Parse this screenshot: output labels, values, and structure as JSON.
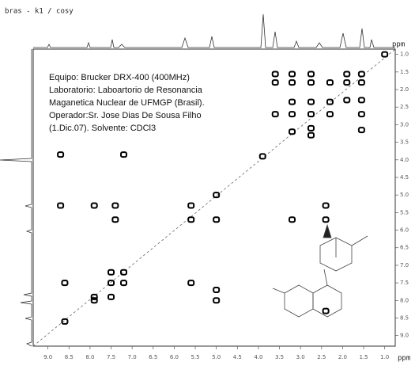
{
  "chart_data": {
    "type": "scatter",
    "title": "bras - k1 / cosy",
    "annotations": [
      "Equipo: Brucker DRX-400 (400MHz)",
      "Laboratorio: Laboartorio de Resonancia",
      "Maganetica Nuclear de UFMGP (Brasil).",
      "Operador:Sr. Jose Dias De Sousa Filho",
      "(1.Dic.07). Solvente: CDCl3"
    ],
    "xlabel": "ppm",
    "ylabel": "ppm",
    "x": [
      3.6,
      3.2,
      2.75,
      1.9,
      1.55,
      3.6,
      3.2,
      2.75,
      2.3,
      1.9,
      1.55,
      3.2,
      2.75,
      2.3,
      1.9,
      1.55,
      3.6,
      3.2,
      2.75,
      2.3,
      1.55,
      3.2,
      2.75,
      1.55,
      2.75,
      3.9,
      7.2,
      8.7,
      5.6,
      5.0,
      7.9,
      7.4,
      8.7,
      2.4,
      5.6,
      5.0,
      7.4,
      3.2,
      2.4,
      7.5,
      7.2,
      7.5,
      8.6,
      7.9,
      7.5,
      8.6,
      7.2,
      5.6,
      5.0,
      5.0,
      7.9,
      2.4,
      1.0
    ],
    "values": [
      1.56,
      1.56,
      1.56,
      1.56,
      1.56,
      1.8,
      1.8,
      1.8,
      1.8,
      1.8,
      1.8,
      2.35,
      2.35,
      2.35,
      2.3,
      2.3,
      2.7,
      2.7,
      2.7,
      2.7,
      2.7,
      3.2,
      3.1,
      3.15,
      3.3,
      3.9,
      3.85,
      3.85,
      5.3,
      5.0,
      5.3,
      5.3,
      5.3,
      5.3,
      5.7,
      5.7,
      5.7,
      5.7,
      5.7,
      7.2,
      7.2,
      7.5,
      7.5,
      7.9,
      7.9,
      8.6,
      7.5,
      7.5,
      7.7,
      8.0,
      8.0,
      8.3,
      1.0
    ],
    "color": "#000000",
    "xlim": [
      9.35,
      0.75
    ],
    "ylim": [
      0.85,
      9.3
    ],
    "xticks": [
      {
        "value": 9,
        "label": "9.0"
      },
      {
        "value": 8.5,
        "label": "8.5"
      },
      {
        "value": 8,
        "label": "8.0"
      },
      {
        "value": 7.5,
        "label": "7.5"
      },
      {
        "value": 7,
        "label": "7.0"
      },
      {
        "value": 6.5,
        "label": "6.5"
      },
      {
        "value": 6,
        "label": "6.0"
      },
      {
        "value": 5.5,
        "label": "5.5"
      },
      {
        "value": 5,
        "label": "5.0"
      },
      {
        "value": 4.5,
        "label": "4.5"
      },
      {
        "value": 4,
        "label": "4.0"
      },
      {
        "value": 3.5,
        "label": "3.5"
      },
      {
        "value": 3,
        "label": "3.0"
      },
      {
        "value": 2.5,
        "label": "2.5"
      },
      {
        "value": 2,
        "label": "2.0"
      },
      {
        "value": 1.5,
        "label": "1.5"
      },
      {
        "value": 1,
        "label": "1.0"
      }
    ],
    "yticks": [
      {
        "value": 1,
        "label": "1.0"
      },
      1.5,
      {
        "value": 2,
        "label": "2.0"
      },
      2.5,
      {
        "value": 3,
        "label": "3.0"
      },
      3.5,
      {
        "value": 4,
        "label": "4.0"
      },
      4.5,
      {
        "value": 5,
        "label": "5.0"
      },
      5.5,
      {
        "value": 6,
        "label": "6.0"
      },
      6.5,
      {
        "value": 7,
        "label": "7.0"
      },
      7.5,
      {
        "value": 8,
        "label": "8.0"
      },
      8.5,
      {
        "value": 9,
        "label": "9.0"
      }
    ]
  }
}
